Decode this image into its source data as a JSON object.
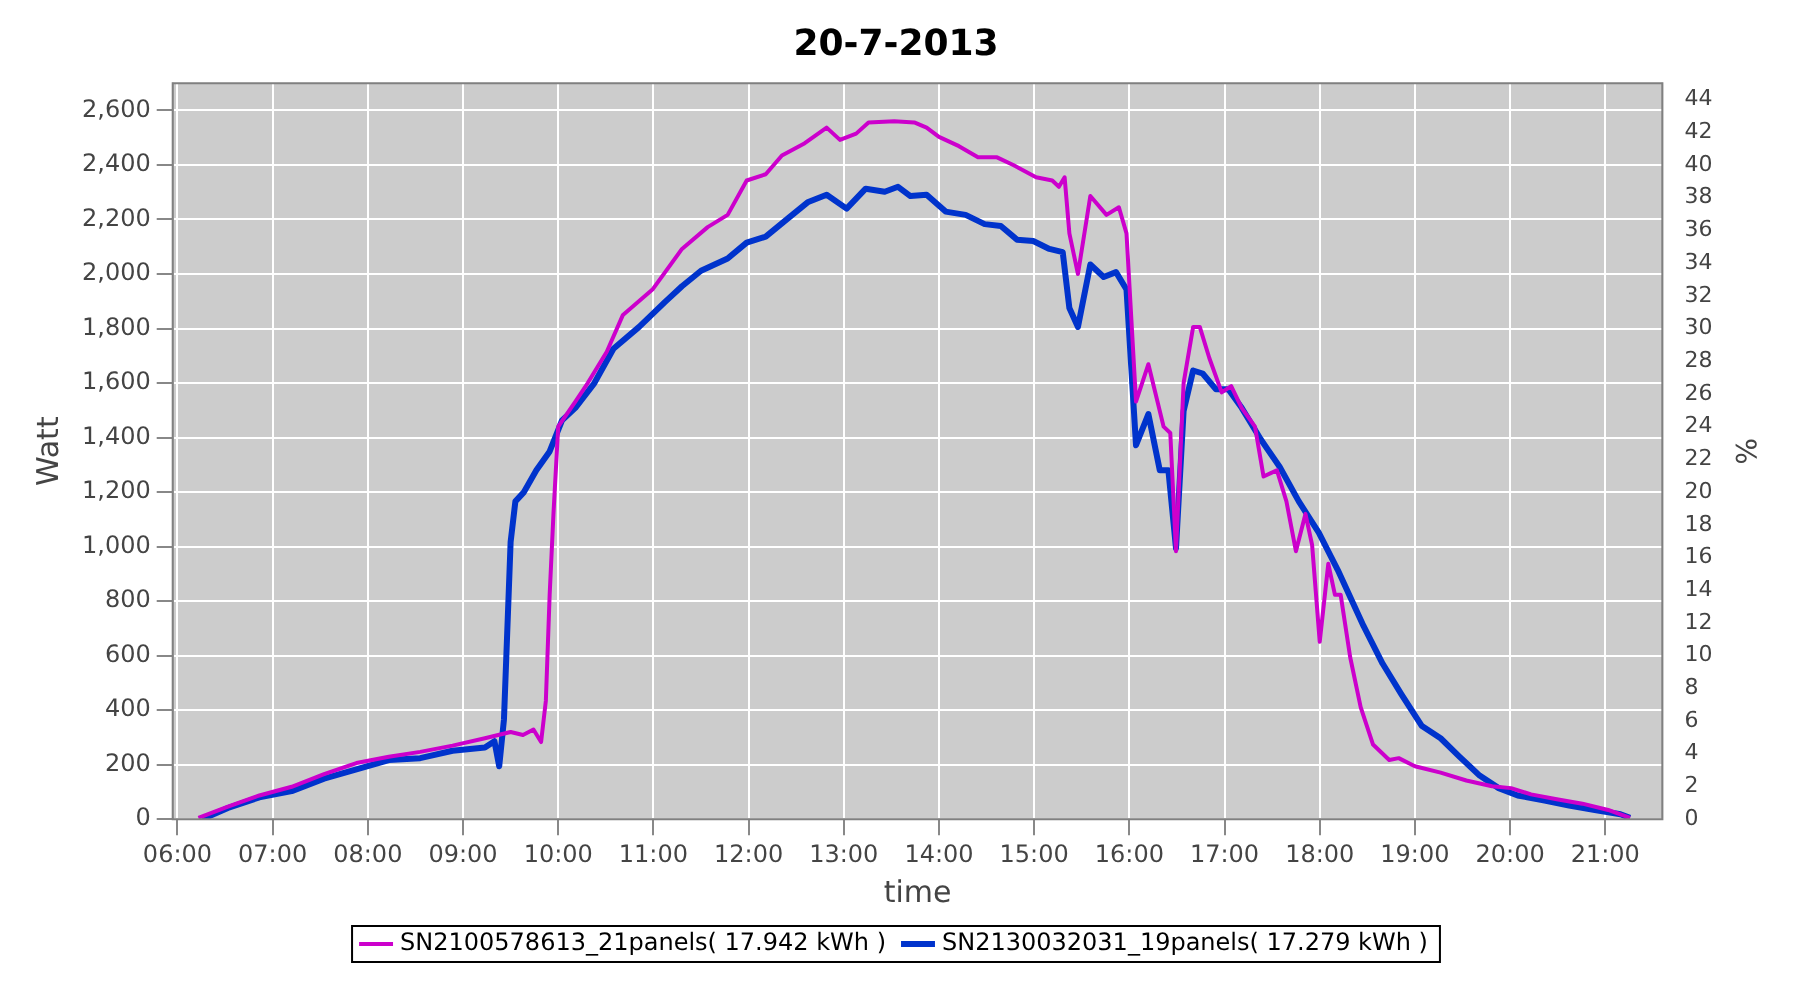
{
  "chart_data": {
    "type": "line",
    "title": "20-7-2013",
    "xlabel": "time",
    "ylabel": "Watt",
    "y2label": "%",
    "xlim": [
      5.95,
      21.6
    ],
    "xticks": [
      {
        "value": 6,
        "label": "06:00"
      },
      {
        "value": 7,
        "label": "07:00"
      },
      {
        "value": 8,
        "label": "08:00"
      },
      {
        "value": 9,
        "label": "09:00"
      },
      {
        "value": 10,
        "label": "10:00"
      },
      {
        "value": 11,
        "label": "11:00"
      },
      {
        "value": 12,
        "label": "12:00"
      },
      {
        "value": 13,
        "label": "13:00"
      },
      {
        "value": 14,
        "label": "14:00"
      },
      {
        "value": 15,
        "label": "15:00"
      },
      {
        "value": 16,
        "label": "16:00"
      },
      {
        "value": 17,
        "label": "17:00"
      },
      {
        "value": 18,
        "label": "18:00"
      },
      {
        "value": 19,
        "label": "19:00"
      },
      {
        "value": 20,
        "label": "20:00"
      },
      {
        "value": 21,
        "label": "21:00"
      }
    ],
    "ylim": [
      0,
      2700
    ],
    "yticks": [
      0,
      200,
      400,
      600,
      800,
      {
        "value": 1000,
        "label": "1,000"
      },
      {
        "value": 1200,
        "label": "1,200"
      },
      {
        "value": 1400,
        "label": "1,400"
      },
      {
        "value": 1600,
        "label": "1,600"
      },
      {
        "value": 1800,
        "label": "1,800"
      },
      {
        "value": 2000,
        "label": "2,000"
      },
      {
        "value": 2200,
        "label": "2,200"
      },
      {
        "value": 2400,
        "label": "2,400"
      },
      {
        "value": 2600,
        "label": "2,600"
      }
    ],
    "y2lim": [
      0,
      45
    ],
    "y2ticks": [
      0,
      2,
      4,
      6,
      8,
      10,
      12,
      14,
      16,
      18,
      20,
      22,
      24,
      26,
      28,
      30,
      32,
      34,
      36,
      38,
      40,
      42,
      44
    ],
    "grid": true,
    "legend": "bottom",
    "marker": "none",
    "line_style": "solid",
    "series": [
      {
        "name": "SN2100578613_21panels( 17.942 kWh )",
        "color": "#cc00cc",
        "x": [
          6.22,
          6.53,
          6.86,
          7.2,
          7.54,
          7.88,
          8.22,
          8.55,
          8.89,
          9.23,
          9.5,
          9.63,
          9.74,
          9.82,
          9.87,
          9.91,
          9.95,
          10.0,
          10.18,
          10.31,
          10.51,
          10.68,
          10.99,
          11.3,
          11.57,
          11.78,
          11.98,
          12.18,
          12.35,
          12.59,
          12.82,
          12.96,
          13.13,
          13.26,
          13.53,
          13.74,
          13.87,
          14.0,
          14.21,
          14.41,
          14.61,
          14.78,
          15.02,
          15.19,
          15.26,
          15.32,
          15.37,
          15.46,
          15.59,
          15.76,
          15.89,
          15.97,
          16.07,
          16.2,
          16.36,
          16.43,
          16.49,
          16.57,
          16.67,
          16.74,
          16.84,
          16.97,
          17.07,
          17.18,
          17.32,
          17.41,
          17.55,
          17.65,
          17.75,
          17.85,
          17.92,
          18.0,
          18.09,
          18.16,
          18.22,
          18.32,
          18.43,
          18.56,
          18.73,
          18.83,
          19.0,
          19.27,
          19.54,
          19.81,
          20.01,
          20.22,
          20.49,
          20.76,
          21.03,
          21.26
        ],
        "values": [
          5,
          46,
          87,
          119,
          165,
          206,
          229,
          247,
          270,
          297,
          320,
          309,
          329,
          283,
          434,
          823,
          1120,
          1440,
          1532,
          1600,
          1715,
          1850,
          1943,
          2092,
          2172,
          2217,
          2343,
          2366,
          2435,
          2480,
          2537,
          2492,
          2515,
          2556,
          2560,
          2556,
          2537,
          2503,
          2469,
          2428,
          2428,
          2400,
          2355,
          2343,
          2320,
          2355,
          2149,
          2000,
          2286,
          2217,
          2245,
          2149,
          1532,
          1669,
          1440,
          1417,
          983,
          1600,
          1806,
          1806,
          1692,
          1566,
          1589,
          1509,
          1440,
          1257,
          1280,
          1166,
          983,
          1120,
          1006,
          651,
          937,
          823,
          823,
          594,
          411,
          274,
          217,
          224,
          194,
          171,
          142,
          121,
          114,
          91,
          73,
          57,
          34,
          5
        ]
      },
      {
        "name": "SN2130032031_19panels( 17.279 kWh )",
        "color": "#0033cc",
        "x": [
          6.26,
          6.53,
          6.86,
          7.2,
          7.54,
          7.88,
          8.22,
          8.55,
          8.89,
          9.23,
          9.33,
          9.38,
          9.43,
          9.5,
          9.55,
          9.64,
          9.77,
          9.91,
          10.04,
          10.18,
          10.38,
          10.58,
          10.85,
          11.12,
          11.3,
          11.5,
          11.78,
          11.98,
          12.18,
          12.42,
          12.62,
          12.82,
          13.03,
          13.23,
          13.43,
          13.57,
          13.7,
          13.87,
          14.07,
          14.28,
          14.48,
          14.65,
          14.82,
          14.99,
          15.16,
          15.3,
          15.37,
          15.46,
          15.59,
          15.73,
          15.86,
          15.97,
          16.07,
          16.2,
          16.32,
          16.41,
          16.49,
          16.57,
          16.67,
          16.77,
          16.91,
          17.04,
          17.18,
          17.38,
          17.58,
          17.78,
          17.99,
          18.19,
          18.46,
          18.66,
          18.86,
          19.07,
          19.27,
          19.47,
          19.68,
          19.88,
          20.08,
          20.35,
          20.62,
          20.89,
          21.16,
          21.26
        ],
        "values": [
          0,
          41,
          80,
          103,
          149,
          183,
          217,
          224,
          251,
          263,
          286,
          194,
          366,
          1017,
          1166,
          1200,
          1280,
          1349,
          1463,
          1509,
          1600,
          1726,
          1806,
          1897,
          1955,
          2012,
          2057,
          2115,
          2137,
          2206,
          2263,
          2291,
          2240,
          2313,
          2302,
          2320,
          2286,
          2291,
          2229,
          2217,
          2183,
          2176,
          2126,
          2121,
          2092,
          2080,
          1875,
          1806,
          2035,
          1989,
          2007,
          1943,
          1372,
          1486,
          1280,
          1280,
          994,
          1497,
          1646,
          1635,
          1577,
          1577,
          1509,
          1394,
          1292,
          1166,
          1051,
          914,
          709,
          571,
          457,
          343,
          297,
          229,
          160,
          114,
          87,
          69,
          50,
          34,
          18,
          5
        ]
      }
    ]
  }
}
